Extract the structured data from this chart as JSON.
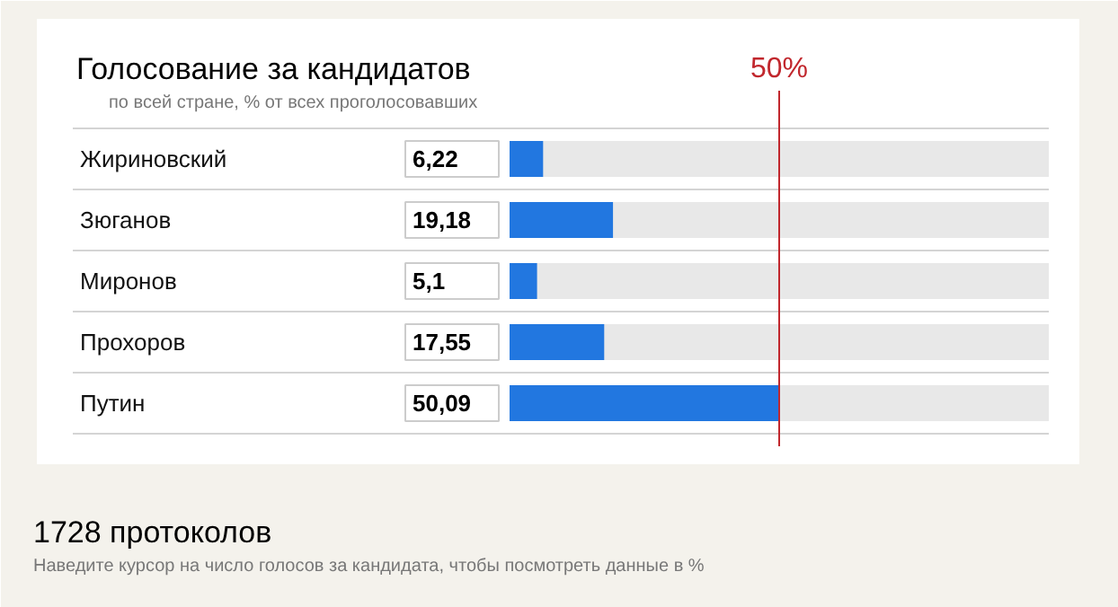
{
  "chart_data": {
    "type": "bar",
    "orientation": "horizontal",
    "title": "Голосование за кандидатов",
    "subtitle": "по всей стране, % от всех проголосовавших",
    "categories": [
      "Жириновский",
      "Зюганов",
      "Миронов",
      "Прохоров",
      "Путин"
    ],
    "values": [
      6.22,
      19.18,
      5.1,
      17.55,
      50.09
    ],
    "value_labels": [
      "6,22",
      "19,18",
      "5,1",
      "17,55",
      "50,09"
    ],
    "color": "#2277e0",
    "xlim": [
      0,
      100
    ],
    "ref_lines": [
      {
        "axis": "x",
        "value": 50,
        "label": "50%",
        "color": "#c1272d"
      }
    ],
    "annotations": [
      "1728 протоколов",
      "Наведите курсор на число голосов за кандидата, чтобы посмотреть данные в %"
    ]
  }
}
